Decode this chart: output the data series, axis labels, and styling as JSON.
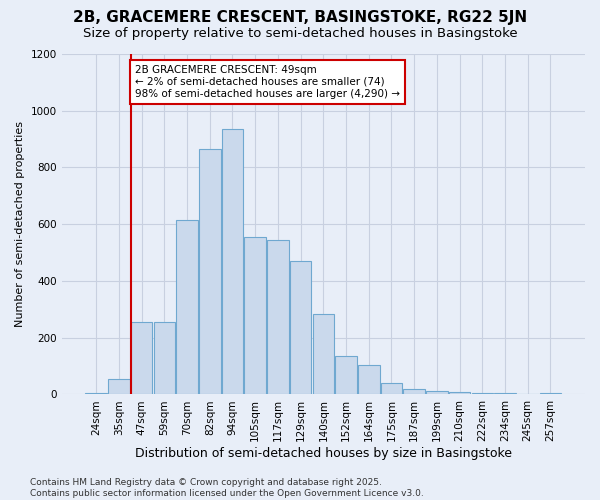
{
  "title1": "2B, GRACEMERE CRESCENT, BASINGSTOKE, RG22 5JN",
  "title2": "Size of property relative to semi-detached houses in Basingstoke",
  "xlabel": "Distribution of semi-detached houses by size in Basingstoke",
  "ylabel": "Number of semi-detached properties",
  "categories": [
    "24sqm",
    "35sqm",
    "47sqm",
    "59sqm",
    "70sqm",
    "82sqm",
    "94sqm",
    "105sqm",
    "117sqm",
    "129sqm",
    "140sqm",
    "152sqm",
    "164sqm",
    "175sqm",
    "187sqm",
    "199sqm",
    "210sqm",
    "222sqm",
    "234sqm",
    "245sqm",
    "257sqm"
  ],
  "values": [
    5,
    55,
    255,
    255,
    615,
    865,
    935,
    555,
    545,
    470,
    285,
    135,
    105,
    42,
    18,
    12,
    8,
    4,
    4,
    0,
    4
  ],
  "bar_color": "#cad9ec",
  "bar_edge_color": "#6fa8d0",
  "red_line_index": 2,
  "annotation_text": "2B GRACEMERE CRESCENT: 49sqm\n← 2% of semi-detached houses are smaller (74)\n98% of semi-detached houses are larger (4,290) →",
  "annotation_box_color": "white",
  "annotation_box_edge_color": "#cc0000",
  "ylim": [
    0,
    1200
  ],
  "yticks": [
    0,
    200,
    400,
    600,
    800,
    1000,
    1200
  ],
  "background_color": "#e8eef8",
  "grid_color": "#c8d0e0",
  "footer": "Contains HM Land Registry data © Crown copyright and database right 2025.\nContains public sector information licensed under the Open Government Licence v3.0.",
  "title1_fontsize": 11,
  "title2_fontsize": 9.5,
  "xlabel_fontsize": 9,
  "ylabel_fontsize": 8,
  "tick_fontsize": 7.5,
  "annotation_fontsize": 7.5,
  "footer_fontsize": 6.5
}
